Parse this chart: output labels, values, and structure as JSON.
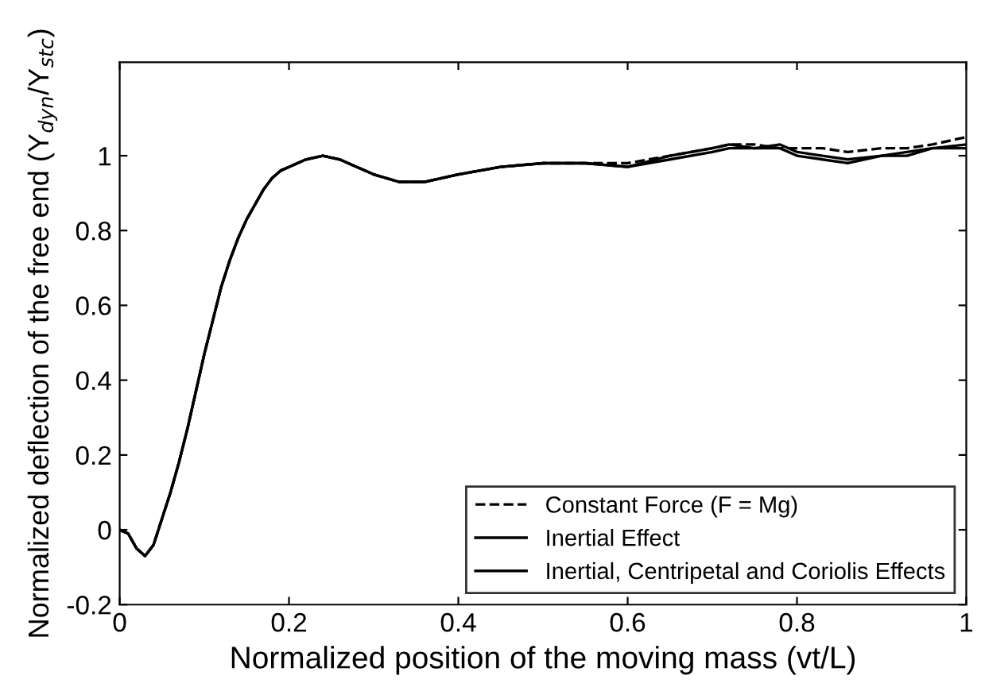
{
  "chart_data": {
    "type": "line",
    "xlabel": "Normalized position of the moving mass (vt/L)",
    "ylabel": "Normalized deflection of the free end (Y$_{dyn}$/Y$_{stc}$)",
    "xlim": [
      0,
      1
    ],
    "ylim": [
      -0.2,
      1.25
    ],
    "xticks": [
      0,
      0.2,
      0.4,
      0.6,
      0.8,
      1
    ],
    "yticks": [
      -0.2,
      0,
      0.2,
      0.4,
      0.6,
      0.8,
      1
    ],
    "grid": false,
    "legend": "bottom right",
    "marker": "none",
    "x": [
      0,
      0.01,
      0.02,
      0.03,
      0.04,
      0.05,
      0.06,
      0.07,
      0.08,
      0.09,
      0.1,
      0.11,
      0.12,
      0.13,
      0.14,
      0.15,
      0.16,
      0.17,
      0.18,
      0.19,
      0.2,
      0.22,
      0.24,
      0.26,
      0.28,
      0.3,
      0.33,
      0.36,
      0.4,
      0.45,
      0.5,
      0.55,
      0.6,
      0.65,
      0.7,
      0.72,
      0.75,
      0.78,
      0.8,
      0.83,
      0.86,
      0.9,
      0.93,
      0.96,
      1
    ],
    "series": [
      {
        "name": "Constant Force (F = Mg)",
        "color": "#000000",
        "line_style": "dashed",
        "values": [
          0,
          -0.01,
          -0.05,
          -0.07,
          -0.04,
          0.03,
          0.1,
          0.18,
          0.27,
          0.37,
          0.47,
          0.56,
          0.65,
          0.72,
          0.78,
          0.83,
          0.87,
          0.91,
          0.94,
          0.96,
          0.97,
          0.99,
          1.0,
          0.99,
          0.97,
          0.95,
          0.93,
          0.93,
          0.95,
          0.97,
          0.98,
          0.98,
          0.98,
          1.0,
          1.02,
          1.03,
          1.03,
          1.02,
          1.02,
          1.02,
          1.01,
          1.02,
          1.02,
          1.03,
          1.05
        ]
      },
      {
        "name": "Inertial Effect",
        "color": "#000000",
        "line_style": "solid",
        "values": [
          0,
          -0.01,
          -0.05,
          -0.07,
          -0.04,
          0.03,
          0.1,
          0.18,
          0.27,
          0.37,
          0.47,
          0.56,
          0.65,
          0.72,
          0.78,
          0.83,
          0.87,
          0.91,
          0.94,
          0.96,
          0.97,
          0.99,
          1.0,
          0.99,
          0.97,
          0.95,
          0.93,
          0.93,
          0.95,
          0.97,
          0.98,
          0.98,
          0.97,
          1.0,
          1.02,
          1.03,
          1.02,
          1.03,
          1.01,
          1.0,
          0.99,
          1.0,
          1.01,
          1.02,
          1.03
        ]
      },
      {
        "name": "Inertial, Centripetal and Coriolis Effects",
        "color": "#000000",
        "line_style": "solid",
        "values": [
          0,
          -0.01,
          -0.05,
          -0.07,
          -0.04,
          0.03,
          0.1,
          0.18,
          0.27,
          0.37,
          0.47,
          0.56,
          0.65,
          0.72,
          0.78,
          0.83,
          0.87,
          0.91,
          0.94,
          0.96,
          0.97,
          0.99,
          1.0,
          0.99,
          0.97,
          0.95,
          0.93,
          0.93,
          0.95,
          0.97,
          0.98,
          0.98,
          0.97,
          0.99,
          1.01,
          1.02,
          1.02,
          1.02,
          1.0,
          0.99,
          0.98,
          1.0,
          1.0,
          1.02,
          1.02
        ]
      }
    ]
  }
}
